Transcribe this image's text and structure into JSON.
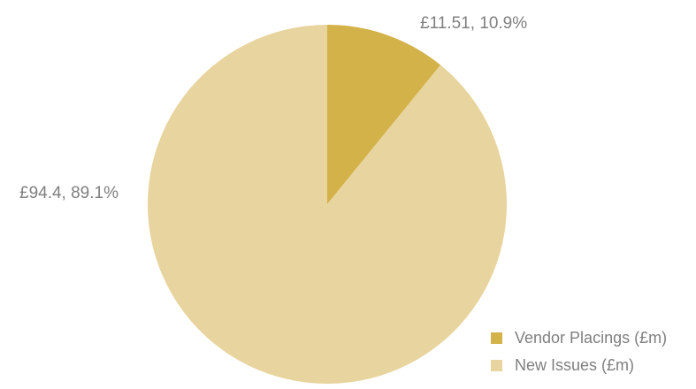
{
  "chart_data": {
    "type": "pie",
    "categories": [
      "Vendor Placings (£m)",
      "New Issues (£m)"
    ],
    "values": [
      11.51,
      94.4
    ],
    "percentages": [
      10.9,
      89.1
    ],
    "data_labels": [
      "£11.51, 10.9%",
      "£94.4, 89.1%"
    ],
    "colors": [
      "#d4b24a",
      "#e8d49e"
    ],
    "legend_position": "bottom-right",
    "start_angle": "12 o'clock",
    "direction": "clockwise"
  }
}
